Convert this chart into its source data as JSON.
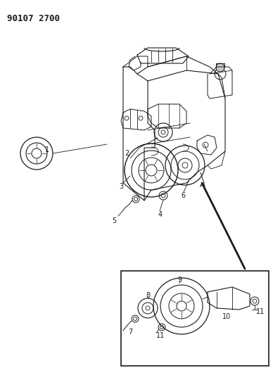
{
  "title": "90107 2700",
  "bg_color": "#ffffff",
  "line_color": "#1a1a1a",
  "fig_width": 3.88,
  "fig_height": 5.33,
  "dpi": 100,
  "title_fontsize": 9,
  "label_fontsize": 7
}
